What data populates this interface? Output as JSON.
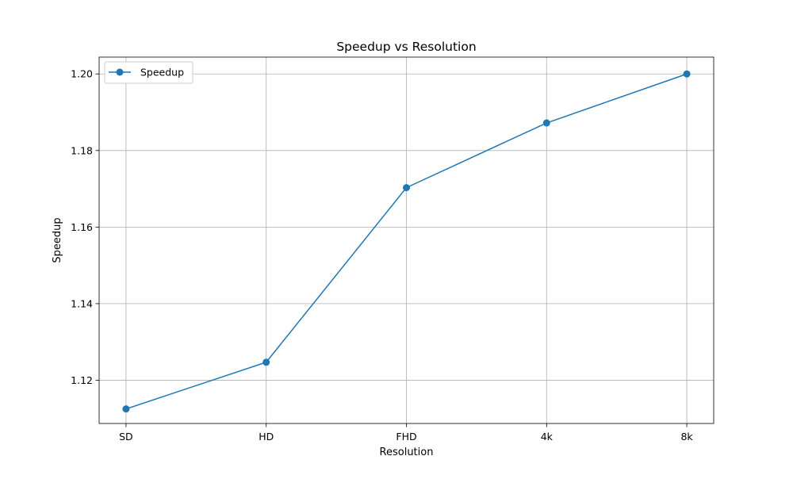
{
  "colors": {
    "series": "#1f77b4",
    "grid": "#b0b0b0",
    "axis": "#000000",
    "legend_border": "#cccccc"
  },
  "chart_data": {
    "type": "line",
    "title": "Speedup vs Resolution",
    "xlabel": "Resolution",
    "ylabel": "Speedup",
    "categories": [
      "SD",
      "HD",
      "FHD",
      "4k",
      "8k"
    ],
    "series": [
      {
        "name": "Speedup",
        "values": [
          1.1125,
          1.1247,
          1.1703,
          1.1872,
          1.2
        ],
        "marker": "circle"
      }
    ],
    "ylim": [
      1.1087,
      1.2044
    ],
    "yticks": [
      1.12,
      1.14,
      1.16,
      1.18,
      1.2
    ],
    "ytick_labels": [
      "1.12",
      "1.14",
      "1.16",
      "1.18",
      "1.20"
    ],
    "grid": true,
    "legend_position": "top-left"
  }
}
